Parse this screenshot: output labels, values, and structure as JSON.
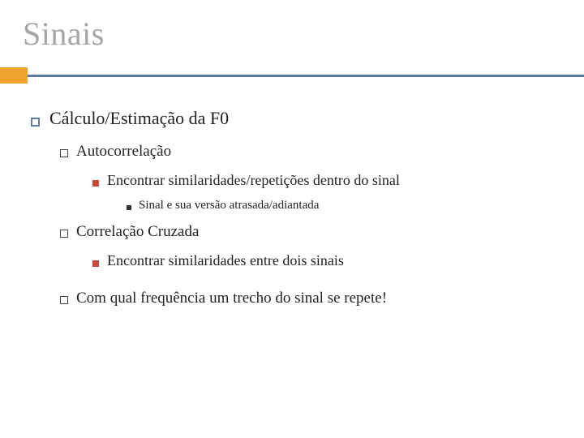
{
  "colors": {
    "title_text": "#a6a6a6",
    "accent_block": "#f0a22e",
    "divider_line": "#5b7ca3",
    "body_text": "#222222",
    "l1_bullet_border": "#5b7ca3",
    "l2_bullet_border": "#444444",
    "l3_bullet_fill": "#c74a3b",
    "l4_bullet_fill": "#333333",
    "background": "#ffffff"
  },
  "typography": {
    "font_family": "Georgia, serif",
    "title_fontsize": 40,
    "l1_fontsize": 22,
    "l2_fontsize": 19,
    "l3_fontsize": 18,
    "l4_fontsize": 15
  },
  "slide": {
    "title": "Sinais",
    "items": {
      "l1_1": "Cálculo/Estimação da F0",
      "l2_1": "Autocorrelação",
      "l3_1": "Encontrar similaridades/repetições dentro do sinal",
      "l4_1": "Sinal e sua versão atrasada/adiantada",
      "l2_2": "Correlação Cruzada",
      "l3_2": "Encontrar similaridades entre dois sinais",
      "l2_3": "Com qual frequência um trecho do sinal se repete!"
    }
  }
}
